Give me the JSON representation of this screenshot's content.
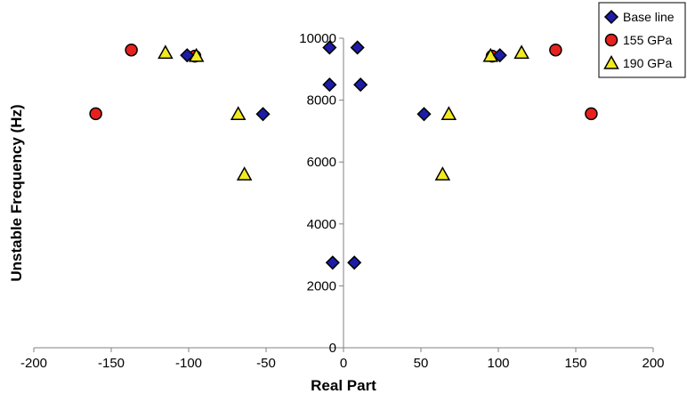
{
  "chart_data": {
    "type": "scatter",
    "xlabel": "Real Part",
    "ylabel": "Unstable Frequency (Hz)",
    "xlim": [
      -200,
      200
    ],
    "ylim": [
      0,
      10000
    ],
    "x_ticks": [
      -200,
      -150,
      -100,
      -50,
      0,
      50,
      100,
      150,
      200
    ],
    "y_ticks": [
      0,
      2000,
      4000,
      6000,
      8000,
      10000
    ],
    "grid": false,
    "legend_position": "top-right",
    "series": [
      {
        "name": "Base line",
        "marker": "diamond",
        "color": "#1c1ca8",
        "points": [
          {
            "x": -101,
            "y": 9450
          },
          {
            "x": -9,
            "y": 9700
          },
          {
            "x": 9,
            "y": 9700
          },
          {
            "x": 101,
            "y": 9450
          },
          {
            "x": -9,
            "y": 8500
          },
          {
            "x": 11,
            "y": 8500
          },
          {
            "x": -52,
            "y": 7550
          },
          {
            "x": 52,
            "y": 7550
          },
          {
            "x": -7,
            "y": 2750
          },
          {
            "x": 7,
            "y": 2750
          }
        ]
      },
      {
        "name": "155 GPa",
        "marker": "circle",
        "color": "#e8211d",
        "points": [
          {
            "x": -137,
            "y": 9620
          },
          {
            "x": 137,
            "y": 9620
          },
          {
            "x": -96,
            "y": 9420
          },
          {
            "x": 96,
            "y": 9420
          },
          {
            "x": -160,
            "y": 7560
          },
          {
            "x": 160,
            "y": 7560
          }
        ]
      },
      {
        "name": "190 GPa",
        "marker": "triangle",
        "color": "#f2ea1f",
        "points": [
          {
            "x": -115,
            "y": 9530
          },
          {
            "x": 115,
            "y": 9530
          },
          {
            "x": -95,
            "y": 9430
          },
          {
            "x": 95,
            "y": 9430
          },
          {
            "x": -68,
            "y": 7550
          },
          {
            "x": 68,
            "y": 7550
          },
          {
            "x": -64,
            "y": 5600
          },
          {
            "x": 64,
            "y": 5600
          }
        ]
      }
    ]
  }
}
